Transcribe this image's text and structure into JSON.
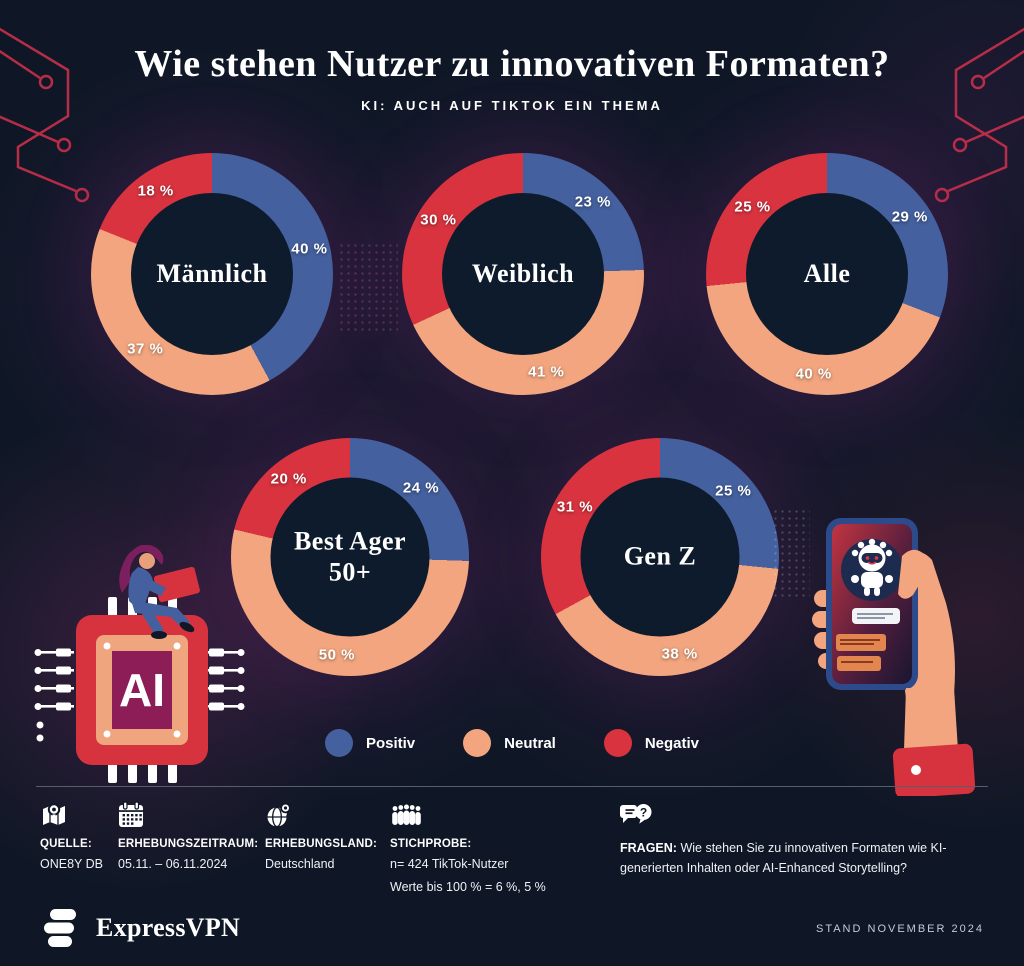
{
  "header": {
    "title": "Wie stehen Nutzer zu innovativen Formaten?",
    "subtitle": "KI: AUCH AUF TIKTOK EIN THEMA"
  },
  "legend": [
    {
      "label": "Positiv",
      "color": "#44609e"
    },
    {
      "label": "Neutral",
      "color": "#f2a57e"
    },
    {
      "label": "Negativ",
      "color": "#d8333f"
    }
  ],
  "chart_data": [
    {
      "type": "pie",
      "subtype": "donut",
      "title": "Männlich",
      "title_lines": [
        "Männlich"
      ],
      "categories": [
        "Positiv",
        "Neutral",
        "Negativ"
      ],
      "values": [
        40,
        37,
        18
      ],
      "labels": [
        "40 %",
        "37 %",
        "18 %"
      ]
    },
    {
      "type": "pie",
      "subtype": "donut",
      "title": "Weiblich",
      "title_lines": [
        "Weiblich"
      ],
      "categories": [
        "Positiv",
        "Neutral",
        "Negativ"
      ],
      "values": [
        23,
        41,
        30
      ],
      "labels": [
        "23 %",
        "41 %",
        "30 %"
      ]
    },
    {
      "type": "pie",
      "subtype": "donut",
      "title": "Alle",
      "title_lines": [
        "Alle"
      ],
      "categories": [
        "Positiv",
        "Neutral",
        "Negativ"
      ],
      "values": [
        29,
        40,
        25
      ],
      "labels": [
        "29 %",
        "40 %",
        "25 %"
      ]
    },
    {
      "type": "pie",
      "subtype": "donut",
      "title": "Best Ager 50+",
      "title_lines": [
        "Best Ager",
        "50+"
      ],
      "categories": [
        "Positiv",
        "Neutral",
        "Negativ"
      ],
      "values": [
        24,
        50,
        20
      ],
      "labels": [
        "24 %",
        "50 %",
        "20 %"
      ]
    },
    {
      "type": "pie",
      "subtype": "donut",
      "title": "Gen Z",
      "title_lines": [
        "Gen Z"
      ],
      "categories": [
        "Positiv",
        "Neutral",
        "Negativ"
      ],
      "values": [
        25,
        38,
        31
      ],
      "labels": [
        "25 %",
        "38 %",
        "31 %"
      ]
    }
  ],
  "footer": {
    "items": [
      {
        "icon": "map-pin-icon",
        "label": "QUELLE:",
        "lines": [
          "ONE8Y DB"
        ]
      },
      {
        "icon": "calendar-icon",
        "label": "ERHEBUNGSZEITRAUM:",
        "lines": [
          "05.11. – 06.11.2024"
        ]
      },
      {
        "icon": "globe-pin-icon",
        "label": "ERHEBUNGSLAND:",
        "lines": [
          "Deutschland"
        ]
      },
      {
        "icon": "crowd-icon",
        "label": "STICHPROBE:",
        "lines": [
          "n= 424 TikTok-Nutzer",
          "Werte bis 100 % = 6 %, 5 %"
        ]
      },
      {
        "icon": "speech-question-icon",
        "label": "FRAGEN:",
        "text": "Wie stehen Sie zu innovativen Formaten wie KI-generierten Inhalten oder AI-Enhanced Storytelling?"
      }
    ]
  },
  "illustrations": {
    "ai_chip_label": "AI"
  },
  "bottom_bar": {
    "brand": "ExpressVPN",
    "stand": "STAND NOVEMBER 2024"
  }
}
